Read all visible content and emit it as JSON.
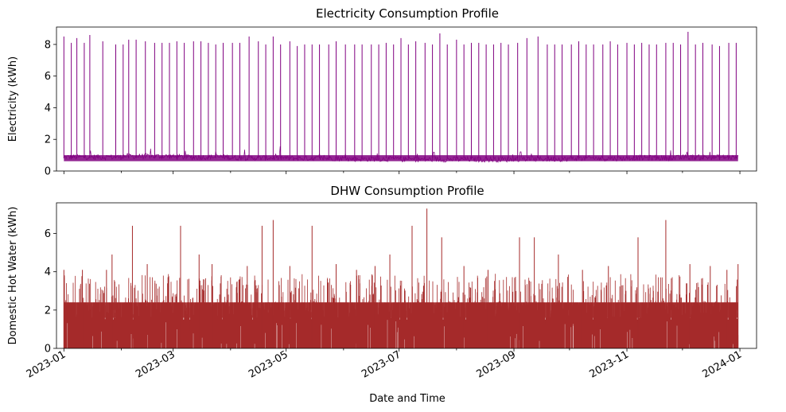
{
  "chart_data": [
    {
      "type": "line",
      "title": "Electricity Consumption Profile",
      "xlabel": "",
      "ylabel": "Electricity (kWh)",
      "xlim": [
        "2022-12-28",
        "2024-01-10"
      ],
      "ylim": [
        0,
        9.1
      ],
      "yticks": [
        0,
        2,
        4,
        6,
        8
      ],
      "grid": false,
      "color": "#800080",
      "series": [
        {
          "baseline_by_month": {
            "2023-01": 0.9,
            "2023-02": 0.95,
            "2023-03": 0.9,
            "2023-04": 0.85,
            "2023-05": 0.82,
            "2023-06": 0.78,
            "2023-07": 0.75,
            "2023-08": 0.75,
            "2023-09": 0.78,
            "2023-10": 0.82,
            "2023-11": 0.85,
            "2023-12": 0.88
          },
          "weekly_peaks": [
            {
              "x": "2023-01-01",
              "y": 8.5
            },
            {
              "x": "2023-01-05",
              "y": 8.1
            },
            {
              "x": "2023-01-08",
              "y": 8.4
            },
            {
              "x": "2023-01-12",
              "y": 8.1
            },
            {
              "x": "2023-01-15",
              "y": 8.6
            },
            {
              "x": "2023-01-22",
              "y": 8.2
            },
            {
              "x": "2023-01-29",
              "y": 8.0
            },
            {
              "x": "2023-02-02",
              "y": 8.0
            },
            {
              "x": "2023-02-05",
              "y": 8.3
            },
            {
              "x": "2023-02-09",
              "y": 8.3
            },
            {
              "x": "2023-02-14",
              "y": 8.2
            },
            {
              "x": "2023-02-19",
              "y": 8.1
            },
            {
              "x": "2023-02-23",
              "y": 8.1
            },
            {
              "x": "2023-02-27",
              "y": 8.1
            },
            {
              "x": "2023-03-03",
              "y": 8.2
            },
            {
              "x": "2023-03-07",
              "y": 8.1
            },
            {
              "x": "2023-03-12",
              "y": 8.2
            },
            {
              "x": "2023-03-16",
              "y": 8.2
            },
            {
              "x": "2023-03-20",
              "y": 8.1
            },
            {
              "x": "2023-03-24",
              "y": 8.0
            },
            {
              "x": "2023-03-28",
              "y": 8.1
            },
            {
              "x": "2023-04-02",
              "y": 8.1
            },
            {
              "x": "2023-04-06",
              "y": 8.1
            },
            {
              "x": "2023-04-11",
              "y": 8.5
            },
            {
              "x": "2023-04-16",
              "y": 8.2
            },
            {
              "x": "2023-04-20",
              "y": 8.0
            },
            {
              "x": "2023-04-24",
              "y": 8.5
            },
            {
              "x": "2023-04-28",
              "y": 8.0
            },
            {
              "x": "2023-05-03",
              "y": 8.2
            },
            {
              "x": "2023-05-07",
              "y": 7.9
            },
            {
              "x": "2023-05-11",
              "y": 8.0
            },
            {
              "x": "2023-05-15",
              "y": 8.0
            },
            {
              "x": "2023-05-19",
              "y": 8.0
            },
            {
              "x": "2023-05-24",
              "y": 8.0
            },
            {
              "x": "2023-05-28",
              "y": 8.2
            },
            {
              "x": "2023-06-02",
              "y": 8.0
            },
            {
              "x": "2023-06-07",
              "y": 8.0
            },
            {
              "x": "2023-06-11",
              "y": 8.0
            },
            {
              "x": "2023-06-16",
              "y": 8.0
            },
            {
              "x": "2023-06-20",
              "y": 8.0
            },
            {
              "x": "2023-06-24",
              "y": 8.1
            },
            {
              "x": "2023-06-28",
              "y": 8.0
            },
            {
              "x": "2023-07-02",
              "y": 8.4
            },
            {
              "x": "2023-07-06",
              "y": 8.0
            },
            {
              "x": "2023-07-10",
              "y": 8.2
            },
            {
              "x": "2023-07-15",
              "y": 8.1
            },
            {
              "x": "2023-07-19",
              "y": 8.0
            },
            {
              "x": "2023-07-23",
              "y": 8.7
            },
            {
              "x": "2023-07-27",
              "y": 8.0
            },
            {
              "x": "2023-08-01",
              "y": 8.3
            },
            {
              "x": "2023-08-05",
              "y": 8.0
            },
            {
              "x": "2023-08-09",
              "y": 8.1
            },
            {
              "x": "2023-08-13",
              "y": 8.1
            },
            {
              "x": "2023-08-17",
              "y": 8.0
            },
            {
              "x": "2023-08-21",
              "y": 8.0
            },
            {
              "x": "2023-08-25",
              "y": 8.1
            },
            {
              "x": "2023-08-29",
              "y": 8.0
            },
            {
              "x": "2023-09-03",
              "y": 8.1
            },
            {
              "x": "2023-09-08",
              "y": 8.4
            },
            {
              "x": "2023-09-14",
              "y": 8.5
            },
            {
              "x": "2023-09-19",
              "y": 8.0
            },
            {
              "x": "2023-09-23",
              "y": 8.0
            },
            {
              "x": "2023-09-27",
              "y": 8.0
            },
            {
              "x": "2023-10-02",
              "y": 8.0
            },
            {
              "x": "2023-10-06",
              "y": 8.2
            },
            {
              "x": "2023-10-10",
              "y": 8.0
            },
            {
              "x": "2023-10-14",
              "y": 8.0
            },
            {
              "x": "2023-10-19",
              "y": 8.0
            },
            {
              "x": "2023-10-23",
              "y": 8.2
            },
            {
              "x": "2023-10-27",
              "y": 8.0
            },
            {
              "x": "2023-11-01",
              "y": 8.1
            },
            {
              "x": "2023-11-05",
              "y": 8.0
            },
            {
              "x": "2023-11-09",
              "y": 8.1
            },
            {
              "x": "2023-11-13",
              "y": 8.0
            },
            {
              "x": "2023-11-17",
              "y": 8.0
            },
            {
              "x": "2023-11-22",
              "y": 8.1
            },
            {
              "x": "2023-11-26",
              "y": 8.1
            },
            {
              "x": "2023-11-30",
              "y": 8.0
            },
            {
              "x": "2023-12-04",
              "y": 8.8
            },
            {
              "x": "2023-12-08",
              "y": 8.0
            },
            {
              "x": "2023-12-12",
              "y": 8.1
            },
            {
              "x": "2023-12-17",
              "y": 8.0
            },
            {
              "x": "2023-12-21",
              "y": 7.9
            },
            {
              "x": "2023-12-26",
              "y": 8.1
            },
            {
              "x": "2023-12-30",
              "y": 8.1
            }
          ]
        }
      ]
    },
    {
      "type": "bar",
      "title": "DHW Consumption Profile",
      "xlabel": "Date and Time",
      "ylabel": "Domestic Hot Water (kWh)",
      "xlim": [
        "2022-12-28",
        "2024-01-10"
      ],
      "ylim": [
        0,
        7.6
      ],
      "yticks": [
        0,
        2,
        4,
        6
      ],
      "xticks": [
        "2023-01",
        "2023-03",
        "2023-05",
        "2023-07",
        "2023-09",
        "2023-11",
        "2024-01"
      ],
      "grid": false,
      "color": "#a52a2a",
      "series": [
        {
          "typical_max": 2.4,
          "dense_fill_level": 1.5,
          "notable_peaks": [
            {
              "x": "2023-01-01",
              "y": 4.1
            },
            {
              "x": "2023-01-11",
              "y": 4.1
            },
            {
              "x": "2023-01-24",
              "y": 4.1
            },
            {
              "x": "2023-01-27",
              "y": 4.9
            },
            {
              "x": "2023-02-07",
              "y": 6.4
            },
            {
              "x": "2023-02-15",
              "y": 4.4
            },
            {
              "x": "2023-03-05",
              "y": 6.4
            },
            {
              "x": "2023-03-15",
              "y": 4.9
            },
            {
              "x": "2023-03-22",
              "y": 4.4
            },
            {
              "x": "2023-04-10",
              "y": 4.3
            },
            {
              "x": "2023-04-18",
              "y": 6.4
            },
            {
              "x": "2023-04-24",
              "y": 6.7
            },
            {
              "x": "2023-05-03",
              "y": 4.3
            },
            {
              "x": "2023-05-15",
              "y": 6.4
            },
            {
              "x": "2023-05-28",
              "y": 4.4
            },
            {
              "x": "2023-06-08",
              "y": 4.1
            },
            {
              "x": "2023-06-18",
              "y": 4.3
            },
            {
              "x": "2023-06-26",
              "y": 4.9
            },
            {
              "x": "2023-07-08",
              "y": 6.4
            },
            {
              "x": "2023-07-16",
              "y": 7.3
            },
            {
              "x": "2023-07-24",
              "y": 5.8
            },
            {
              "x": "2023-08-05",
              "y": 4.3
            },
            {
              "x": "2023-08-18",
              "y": 4.1
            },
            {
              "x": "2023-09-04",
              "y": 5.8
            },
            {
              "x": "2023-09-12",
              "y": 5.8
            },
            {
              "x": "2023-09-25",
              "y": 4.9
            },
            {
              "x": "2023-10-08",
              "y": 4.1
            },
            {
              "x": "2023-10-22",
              "y": 4.3
            },
            {
              "x": "2023-11-07",
              "y": 5.8
            },
            {
              "x": "2023-11-22",
              "y": 6.7
            },
            {
              "x": "2023-12-05",
              "y": 4.4
            },
            {
              "x": "2023-12-16",
              "y": 4.3
            },
            {
              "x": "2023-12-25",
              "y": 4.1
            },
            {
              "x": "2023-12-31",
              "y": 4.4
            }
          ]
        }
      ]
    }
  ]
}
